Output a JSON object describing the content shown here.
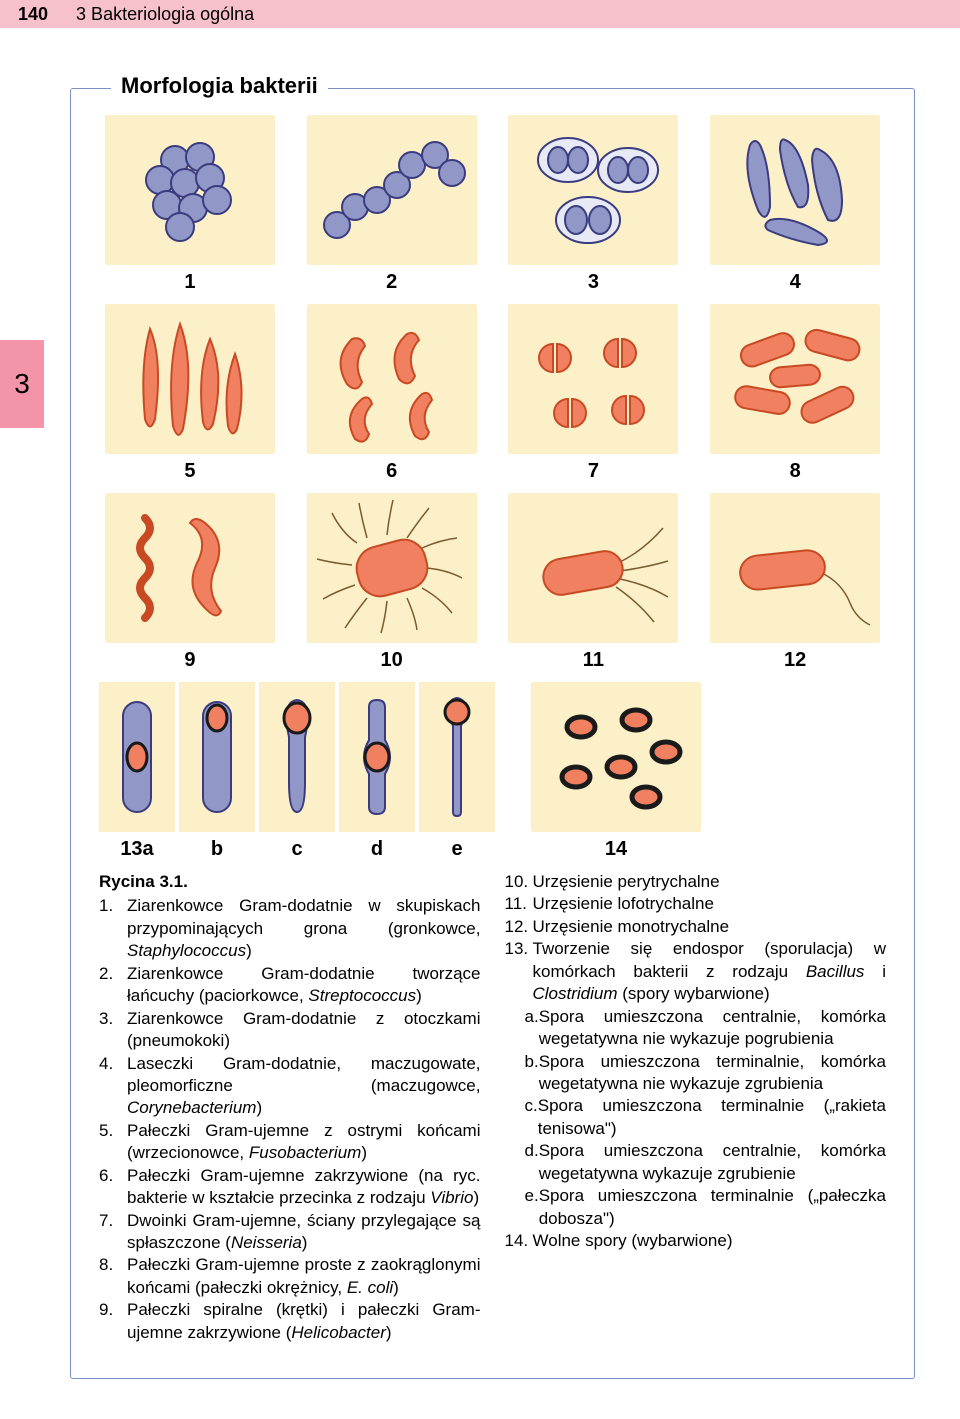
{
  "header": {
    "page_number": "140",
    "chapter": "3 Bakteriologia ogólna"
  },
  "side_tab": "3",
  "figure": {
    "frame_title": "Morfologia bakterii",
    "tile_bg": "#fbf0c7",
    "colors": {
      "purple_fill": "#9198c7",
      "purple_stroke": "#3b3b80",
      "orange_fill": "#f08060",
      "orange_stroke": "#c84a24",
      "spore_fill": "#f08060",
      "spore_stroke": "#2b2b2b",
      "dark": "#1a1a1a"
    },
    "tiles": [
      {
        "id": 1,
        "label": "1"
      },
      {
        "id": 2,
        "label": "2"
      },
      {
        "id": 3,
        "label": "3"
      },
      {
        "id": 4,
        "label": "4"
      },
      {
        "id": 5,
        "label": "5"
      },
      {
        "id": 6,
        "label": "6"
      },
      {
        "id": 7,
        "label": "7"
      },
      {
        "id": 8,
        "label": "8"
      },
      {
        "id": 9,
        "label": "9"
      },
      {
        "id": 10,
        "label": "10"
      },
      {
        "id": 11,
        "label": "11"
      },
      {
        "id": 12,
        "label": "12"
      }
    ],
    "row13": {
      "sub": [
        {
          "label": "13a"
        },
        {
          "label": "b"
        },
        {
          "label": "c"
        },
        {
          "label": "d"
        },
        {
          "label": "e"
        }
      ],
      "tile14": {
        "label": "14"
      }
    }
  },
  "caption": {
    "rycina": "Rycina 3.1.",
    "left": [
      {
        "n": "1.",
        "t": "Ziarenkowce Gram-dodatnie w skupiskach przypominających grona (gronkowce, <span class=\"italic\">Staphylococcus</span>)"
      },
      {
        "n": "2.",
        "t": "Ziarenkowce Gram-dodatnie tworzące łańcuchy (paciorkowce, <span class=\"italic\">Streptococcus</span>)"
      },
      {
        "n": "3.",
        "t": "Ziarenkowce Gram-dodatnie z otoczkami (pneumokoki)"
      },
      {
        "n": "4.",
        "t": "Laseczki Gram-dodatnie, maczugowate, pleomorficzne (maczugowce, <span class=\"italic\">Corynebacterium</span>)"
      },
      {
        "n": "5.",
        "t": "Pałeczki Gram-ujemne z ostrymi końcami (wrzecionowce, <span class=\"italic\">Fusobacterium</span>)"
      },
      {
        "n": "6.",
        "t": "Pałeczki Gram-ujemne zakrzywione (na ryc. bakterie w kształcie przecinka z rodzaju <span class=\"italic\">Vibrio</span>)"
      },
      {
        "n": "7.",
        "t": "Dwoinki Gram-ujemne, ściany przylegające są spłaszczone (<span class=\"italic\">Neisseria</span>)"
      },
      {
        "n": "8.",
        "t": "Pałeczki Gram-ujemne proste z zaokrąglonymi końcami (pałeczki okrężnicy, <span class=\"italic\">E. coli</span>)"
      },
      {
        "n": "9.",
        "t": "Pałeczki spiralne (krętki) i pałeczki Gram-ujemne zakrzywione (<span class=\"italic\">Helicobacter</span>)"
      }
    ],
    "right": [
      {
        "n": "10.",
        "t": "Urzęsienie perytrychalne"
      },
      {
        "n": "11.",
        "t": "Urzęsienie lofotrychalne"
      },
      {
        "n": "12.",
        "t": "Urzęsienie monotrychalne"
      },
      {
        "n": "13.",
        "t": "Tworzenie się endospor (sporulacja) w komórkach bakterii z rodzaju <span class=\"italic\">Bacillus</span> i <span class=\"italic\">Clostridium</span> (spory wybarwione)"
      }
    ],
    "right_sub": [
      {
        "n": "a.",
        "t": "Spora umieszczona centralnie, komórka wegetatywna nie wykazuje pogrubienia"
      },
      {
        "n": "b.",
        "t": "Spora umieszczona terminalnie, komórka wegetatywna nie wykazuje zgrubienia"
      },
      {
        "n": "c.",
        "t": "Spora umieszczona terminalnie („rakieta tenisowa\")"
      },
      {
        "n": "d.",
        "t": "Spora umieszczona centralnie, komórka wegetatywna wykazuje zgrubienie"
      },
      {
        "n": "e.",
        "t": "Spora umieszczona terminalnie („pałeczka dobosza\")"
      }
    ],
    "right_after": [
      {
        "n": "14.",
        "t": "Wolne spory (wybarwione)"
      }
    ]
  }
}
